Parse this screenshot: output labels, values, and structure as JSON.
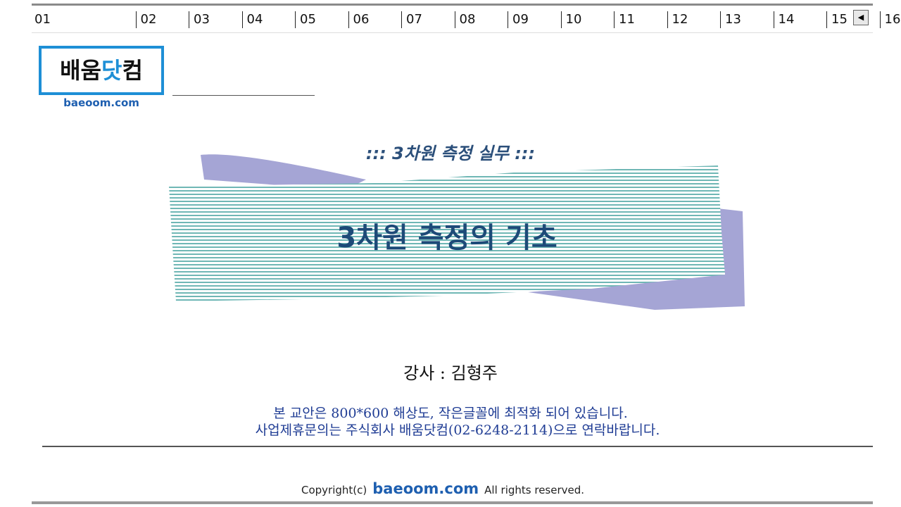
{
  "tabs": [
    "01",
    "02",
    "03",
    "04",
    "05",
    "06",
    "07",
    "08",
    "09",
    "10",
    "11",
    "12",
    "13",
    "14",
    "15",
    "16"
  ],
  "logo": {
    "parts": [
      "배움",
      "닷",
      "컴"
    ],
    "url": "baeoom.com"
  },
  "course": "::: 3차원 측정 실무 :::",
  "title": "3차원 측정의 기초",
  "instructor": "강사 : 김형주",
  "notice": [
    "본 교안은 800*600 해상도, 작은글꼴에 최적화 되어 있습니다.",
    "사업제휴문의는 주식회사 배움닷컴(02-6248-2114)으로 연락바랍니다."
  ],
  "footer": {
    "copyright": "Copyright(c)",
    "brand": "baeoom.com",
    "rights": "All rights reserved."
  }
}
